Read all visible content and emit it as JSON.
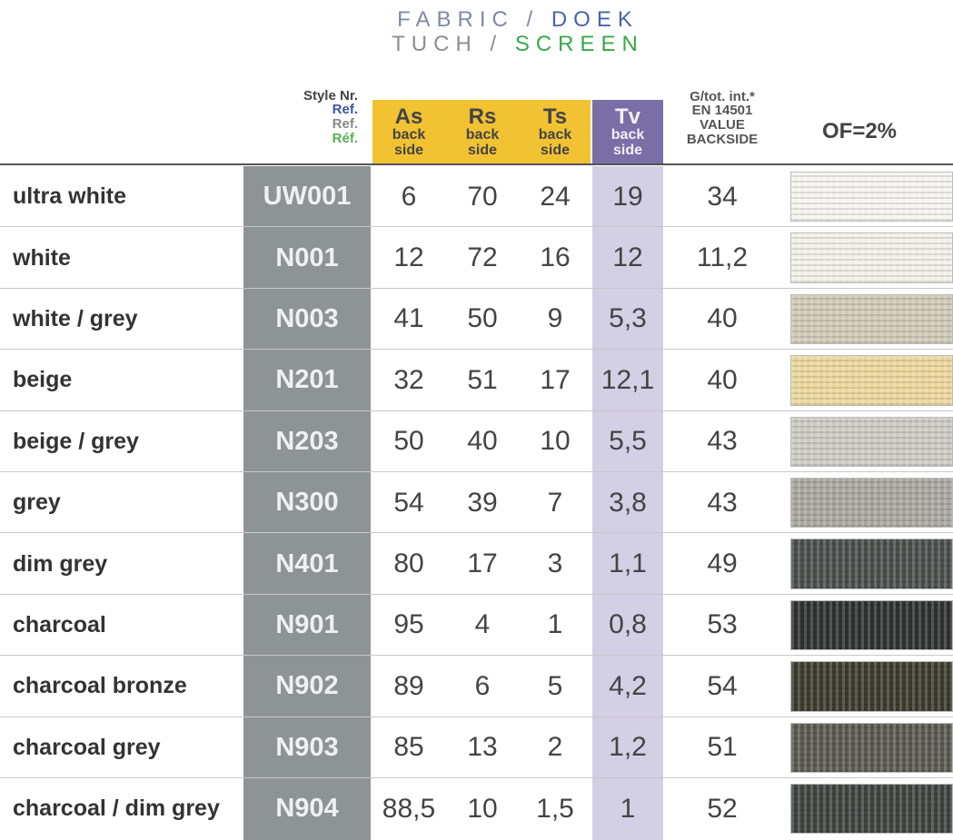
{
  "header": {
    "fabric": [
      "FABRIC",
      "/",
      "DOEK"
    ],
    "tuch": [
      "TUCH",
      "/",
      "SCREEN"
    ]
  },
  "columns": {
    "style": [
      "Style Nr.",
      "Ref.",
      "Ref.",
      "Réf."
    ],
    "as": {
      "label": "As",
      "sub": [
        "back",
        "side"
      ]
    },
    "rs": {
      "label": "Rs",
      "sub": [
        "back",
        "side"
      ]
    },
    "ts": {
      "label": "Ts",
      "sub": [
        "back",
        "side"
      ]
    },
    "tv": {
      "label": "Tv",
      "sub": [
        "back",
        "side"
      ]
    },
    "g": [
      "G/tot. int.*",
      "EN 14501",
      "VALUE",
      "BACKSIDE"
    ],
    "of": "OF=2%"
  },
  "rows": [
    {
      "name": "ultra white",
      "style": "UW001",
      "as": "6",
      "rs": "70",
      "ts": "24",
      "tv": "19",
      "g": "34"
    },
    {
      "name": "white",
      "style": "N001",
      "as": "12",
      "rs": "72",
      "ts": "16",
      "tv": "12",
      "g": "11,2"
    },
    {
      "name": "white / grey",
      "style": "N003",
      "as": "41",
      "rs": "50",
      "ts": "9",
      "tv": "5,3",
      "g": "40"
    },
    {
      "name": "beige",
      "style": "N201",
      "as": "32",
      "rs": "51",
      "ts": "17",
      "tv": "12,1",
      "g": "40"
    },
    {
      "name": "beige / grey",
      "style": "N203",
      "as": "50",
      "rs": "40",
      "ts": "10",
      "tv": "5,5",
      "g": "43"
    },
    {
      "name": "grey",
      "style": "N300",
      "as": "54",
      "rs": "39",
      "ts": "7",
      "tv": "3,8",
      "g": "43"
    },
    {
      "name": "dim grey",
      "style": "N401",
      "as": "80",
      "rs": "17",
      "ts": "3",
      "tv": "1,1",
      "g": "49"
    },
    {
      "name": "charcoal",
      "style": "N901",
      "as": "95",
      "rs": "4",
      "ts": "1",
      "tv": "0,8",
      "g": "53"
    },
    {
      "name": "charcoal bronze",
      "style": "N902",
      "as": "89",
      "rs": "6",
      "ts": "5",
      "tv": "4,2",
      "g": "54"
    },
    {
      "name": "charcoal grey",
      "style": "N903",
      "as": "85",
      "rs": "13",
      "ts": "2",
      "tv": "1,2",
      "g": "51"
    },
    {
      "name": "charcoal / dim grey",
      "style": "N904",
      "as": "88,5",
      "rs": "10",
      "ts": "1,5",
      "tv": "1",
      "g": "52"
    }
  ]
}
